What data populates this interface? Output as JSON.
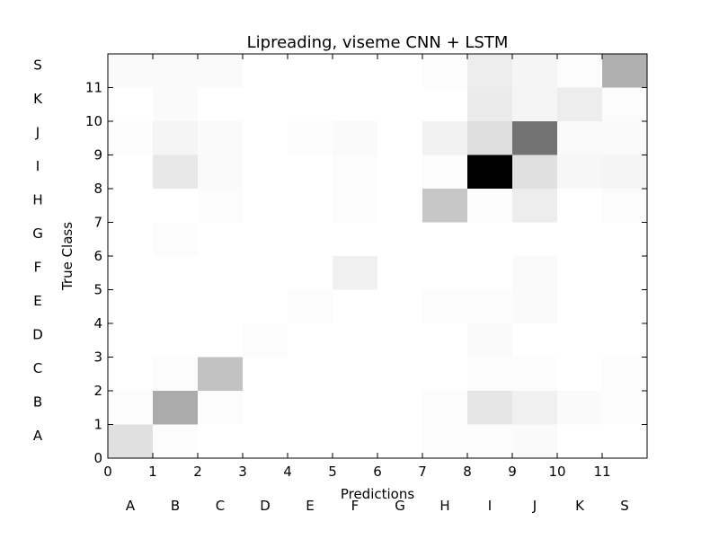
{
  "chart_data": {
    "type": "heatmap",
    "title": "Lipreading, viseme CNN + LSTM",
    "xlabel": "Predictions",
    "ylabel": "True Class",
    "x_ticks": [
      "0",
      "1",
      "2",
      "3",
      "4",
      "5",
      "6",
      "7",
      "8",
      "9",
      "10",
      "11"
    ],
    "y_ticks": [
      "0",
      "1",
      "2",
      "3",
      "4",
      "5",
      "6",
      "7",
      "8",
      "9",
      "10",
      "11"
    ],
    "classes": [
      "A",
      "B",
      "C",
      "D",
      "E",
      "F",
      "G",
      "H",
      "I",
      "J",
      "K",
      "S"
    ],
    "xlim": [
      0,
      12
    ],
    "ylim": [
      0,
      12
    ],
    "colormap": "gray_r",
    "value_range": [
      0,
      1
    ],
    "matrix": [
      [
        0.12,
        0.01,
        0,
        0,
        0,
        0,
        0,
        0.01,
        0.01,
        0.02,
        0,
        0
      ],
      [
        0.01,
        0.33,
        0.01,
        0,
        0,
        0,
        0,
        0.01,
        0.1,
        0.06,
        0.02,
        0.01
      ],
      [
        0,
        0.01,
        0.24,
        0,
        0,
        0,
        0,
        0,
        0.01,
        0.01,
        0,
        0.01
      ],
      [
        0,
        0,
        0,
        0.01,
        0,
        0,
        0,
        0,
        0.02,
        0,
        0,
        0
      ],
      [
        0,
        0,
        0,
        0,
        0.01,
        0,
        0,
        0.01,
        0.01,
        0.02,
        0,
        0
      ],
      [
        0,
        0,
        0,
        0,
        0,
        0.06,
        0,
        0,
        0,
        0.02,
        0,
        0
      ],
      [
        0,
        0.01,
        0,
        0,
        0,
        0,
        0,
        0,
        0,
        0,
        0,
        0
      ],
      [
        0,
        0,
        0.01,
        0,
        0,
        0.01,
        0,
        0.22,
        0.01,
        0.07,
        0,
        0.01
      ],
      [
        0,
        0.09,
        0.02,
        0,
        0,
        0.01,
        0,
        0.01,
        1.0,
        0.12,
        0.03,
        0.04
      ],
      [
        0.01,
        0.04,
        0.02,
        0,
        0.01,
        0.02,
        0,
        0.05,
        0.13,
        0.55,
        0.02,
        0.02
      ],
      [
        0,
        0.02,
        0,
        0,
        0,
        0,
        0,
        0,
        0.08,
        0.04,
        0.07,
        0.01
      ],
      [
        0.02,
        0.02,
        0.02,
        0,
        0,
        0,
        0,
        0.01,
        0.07,
        0.04,
        0.01,
        0.31
      ]
    ]
  }
}
